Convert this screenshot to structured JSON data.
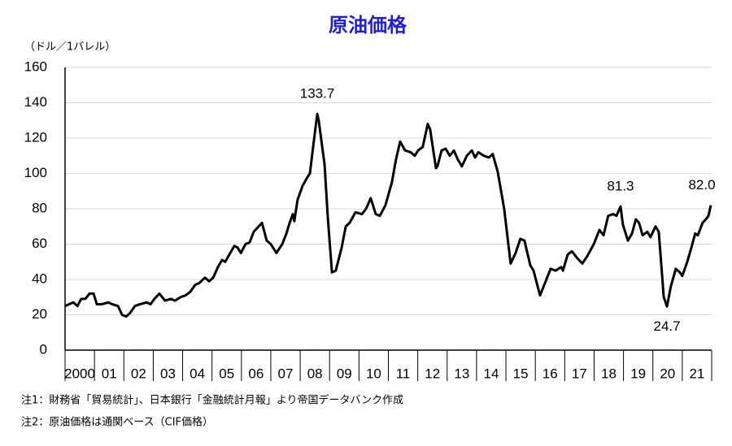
{
  "chart_data": {
    "type": "line",
    "title": "原油価格",
    "y_axis_label": "（ドル／1バレル）",
    "notes": [
      "注1：財務省「貿易統計」、日本銀行「金融統計月報」より帝国データバンク作成",
      "注2：原油価格は通関ベース（CIF価格）"
    ],
    "color": "#000000",
    "title_color": "#1f1fd6",
    "grid": true,
    "xlim": [
      2000,
      2022
    ],
    "ylim": [
      0,
      160
    ],
    "yticks": [
      0,
      20,
      40,
      60,
      80,
      100,
      120,
      140,
      160
    ],
    "xticks": [
      {
        "value": 2000.5,
        "label": "2000"
      },
      {
        "value": 2001.5,
        "label": "01"
      },
      {
        "value": 2002.5,
        "label": "02"
      },
      {
        "value": 2003.5,
        "label": "03"
      },
      {
        "value": 2004.5,
        "label": "04"
      },
      {
        "value": 2005.5,
        "label": "05"
      },
      {
        "value": 2006.5,
        "label": "06"
      },
      {
        "value": 2007.5,
        "label": "07"
      },
      {
        "value": 2008.5,
        "label": "08"
      },
      {
        "value": 2009.5,
        "label": "09"
      },
      {
        "value": 2010.5,
        "label": "10"
      },
      {
        "value": 2011.5,
        "label": "11"
      },
      {
        "value": 2012.5,
        "label": "12"
      },
      {
        "value": 2013.5,
        "label": "13"
      },
      {
        "value": 2014.5,
        "label": "14"
      },
      {
        "value": 2015.5,
        "label": "15"
      },
      {
        "value": 2016.5,
        "label": "16"
      },
      {
        "value": 2017.5,
        "label": "17"
      },
      {
        "value": 2018.5,
        "label": "18"
      },
      {
        "value": 2019.5,
        "label": "19"
      },
      {
        "value": 2020.5,
        "label": "20"
      },
      {
        "value": 2021.5,
        "label": "21"
      }
    ],
    "x": [
      2000.0,
      2000.28,
      2000.42,
      2000.55,
      2000.69,
      2000.83,
      2000.97,
      2001.08,
      2001.25,
      2001.47,
      2001.6,
      2001.8,
      2001.94,
      2002.08,
      2002.21,
      2002.38,
      2002.55,
      2002.77,
      2002.91,
      2003.04,
      2003.21,
      2003.4,
      2003.6,
      2003.74,
      2003.93,
      2004.1,
      2004.26,
      2004.43,
      2004.57,
      2004.76,
      2004.9,
      2005.04,
      2005.2,
      2005.34,
      2005.45,
      2005.62,
      2005.76,
      2005.87,
      2005.98,
      2006.14,
      2006.28,
      2006.42,
      2006.7,
      2006.86,
      2007.0,
      2007.19,
      2007.39,
      2007.53,
      2007.64,
      2007.75,
      2007.8,
      2007.91,
      2008.08,
      2008.25,
      2008.33,
      2008.44,
      2008.58,
      2008.63,
      2008.83,
      2008.94,
      2009.08,
      2009.21,
      2009.41,
      2009.55,
      2009.68,
      2009.88,
      2010.1,
      2010.24,
      2010.4,
      2010.57,
      2010.71,
      2010.9,
      2011.12,
      2011.26,
      2011.4,
      2011.57,
      2011.76,
      2011.9,
      2012.01,
      2012.17,
      2012.34,
      2012.42,
      2012.62,
      2012.67,
      2012.81,
      2012.95,
      2013.09,
      2013.23,
      2013.36,
      2013.5,
      2013.67,
      2013.84,
      2013.95,
      2014.06,
      2014.25,
      2014.42,
      2014.55,
      2014.72,
      2014.94,
      2015.16,
      2015.33,
      2015.49,
      2015.63,
      2015.83,
      2015.94,
      2016.16,
      2016.33,
      2016.52,
      2016.69,
      2016.88,
      2016.94,
      2017.1,
      2017.24,
      2017.43,
      2017.6,
      2017.76,
      2017.99,
      2018.18,
      2018.32,
      2018.48,
      2018.65,
      2018.76,
      2018.9,
      2018.98,
      2019.15,
      2019.29,
      2019.42,
      2019.53,
      2019.65,
      2019.81,
      2019.92,
      2020.09,
      2020.2,
      2020.37,
      2020.48,
      2020.61,
      2020.78,
      2020.92,
      2021.0,
      2021.17,
      2021.31,
      2021.44,
      2021.53,
      2021.69,
      2021.8,
      2021.89,
      2021.97
    ],
    "values": [
      25,
      27,
      25,
      29,
      29,
      32,
      32,
      26,
      26,
      27,
      26,
      25,
      20,
      19,
      21,
      25,
      26,
      27,
      26,
      29,
      32,
      28,
      29,
      28,
      30,
      31,
      33,
      37,
      38,
      41,
      39,
      41,
      47,
      51,
      50,
      55,
      59,
      58,
      55,
      60,
      61,
      67,
      72,
      62,
      60,
      55,
      60,
      66,
      72,
      77,
      73,
      85,
      93,
      98,
      100,
      115,
      133.7,
      130,
      105,
      75,
      44,
      45,
      58,
      70,
      72,
      78,
      77,
      80,
      86,
      77,
      76,
      82,
      95,
      108,
      118,
      113,
      112,
      110,
      113,
      115,
      128,
      125,
      103,
      104,
      113,
      114,
      110,
      113,
      108,
      104,
      110,
      113,
      109,
      112,
      110,
      109,
      111,
      101,
      80,
      49,
      55,
      63,
      62,
      48,
      45,
      31,
      38,
      46,
      45,
      47,
      45,
      54,
      56,
      52,
      49,
      53,
      60,
      68,
      65,
      76,
      77,
      76,
      81.3,
      71,
      62,
      66,
      74,
      72,
      65,
      67,
      64,
      70,
      67,
      30,
      24.7,
      36,
      46,
      44,
      42,
      50,
      58,
      66,
      65,
      72,
      74,
      76,
      82
    ],
    "annotations": [
      {
        "text": "133.7",
        "x": 2008.58,
        "y": 133.7,
        "position": "above"
      },
      {
        "text": "81.3",
        "x": 2018.9,
        "y": 81.3,
        "position": "above"
      },
      {
        "text": "24.7",
        "x": 2020.48,
        "y": 24.7,
        "position": "below"
      },
      {
        "text": "82.0",
        "x": 2021.97,
        "y": 82,
        "position": "above"
      }
    ]
  }
}
